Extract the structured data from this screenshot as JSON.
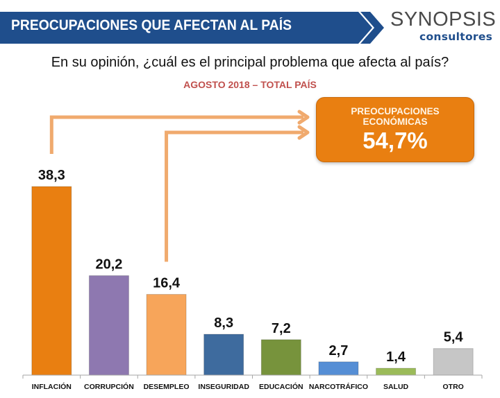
{
  "header": {
    "title": "PREOCUPACIONES QUE AFECTAN AL PAÍS",
    "brand_color": "#1f4e8c",
    "logo": {
      "name": "SYNOPSIS",
      "tagline": "consultores"
    }
  },
  "question": "En su opinión, ¿cuál es el principal problema que afecta al país?",
  "subtitle": "AGOSTO 2018 – TOTAL PAÍS",
  "callout": {
    "label_line1": "PREOCUPACIONES",
    "label_line2": "ECONÓMICAS",
    "value": "54,7%",
    "color": "#e97f11",
    "arrow_color": "#f0aa6e",
    "linked_categories": [
      "INFLACIÓN",
      "DESEMPLEO"
    ]
  },
  "chart_data": {
    "type": "bar",
    "title": "En su opinión, ¿cuál es el principal problema que afecta al país?",
    "subtitle": "AGOSTO 2018 – TOTAL PAÍS",
    "xlabel": "",
    "ylabel": "",
    "ylim": [
      0,
      40
    ],
    "grid": false,
    "legend": "none",
    "categories": [
      "INFLACIÓN",
      "CORRUPCIÓN",
      "DESEMPLEO",
      "INSEGURIDAD",
      "EDUCACIÓN",
      "NARCOTRÁFICO",
      "SALUD",
      "OTRO"
    ],
    "values": [
      38.3,
      20.2,
      16.4,
      8.3,
      7.2,
      2.7,
      1.4,
      5.4
    ],
    "value_labels": [
      "38,3",
      "20,2",
      "16,4",
      "8,3",
      "7,2",
      "2,7",
      "1,4",
      "5,4"
    ],
    "colors": [
      "#e97f11",
      "#8e78b0",
      "#f7a55a",
      "#3e6b9e",
      "#77933c",
      "#558ed5",
      "#9bbb59",
      "#c6c6c6"
    ],
    "annotations": [
      "PREOCUPACIONES ECONÓMICAS 54,7% (INFLACIÓN + DESEMPLEO)"
    ]
  }
}
